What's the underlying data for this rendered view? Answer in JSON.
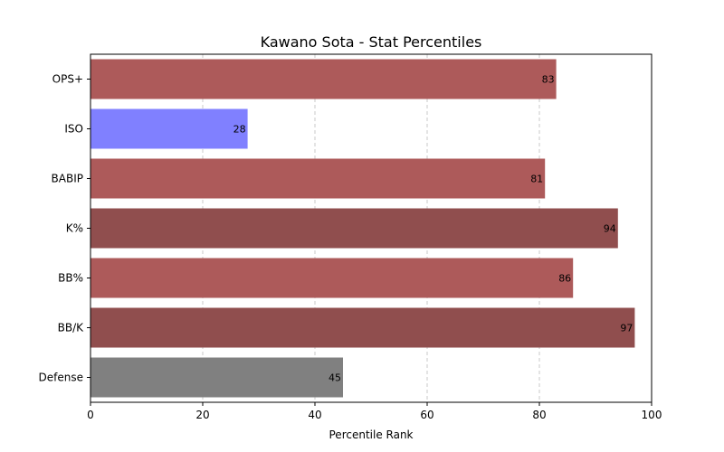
{
  "chart_data": {
    "type": "bar",
    "orientation": "horizontal",
    "title": "Kawano Sota - Stat Percentiles",
    "xlabel": "Percentile Rank",
    "ylabel": "",
    "xlim": [
      0,
      100
    ],
    "xticks": [
      0,
      20,
      40,
      60,
      80,
      100
    ],
    "grid": "x-dashed",
    "categories": [
      "OPS+",
      "ISO",
      "BABIP",
      "K%",
      "BB%",
      "BB/K",
      "Defense"
    ],
    "values": [
      83,
      28,
      81,
      94,
      86,
      97,
      45
    ],
    "colors": [
      "#ad5a5a",
      "#8080ff",
      "#ad5a5a",
      "#904e4e",
      "#ad5a5a",
      "#904e4e",
      "#808080"
    ]
  }
}
